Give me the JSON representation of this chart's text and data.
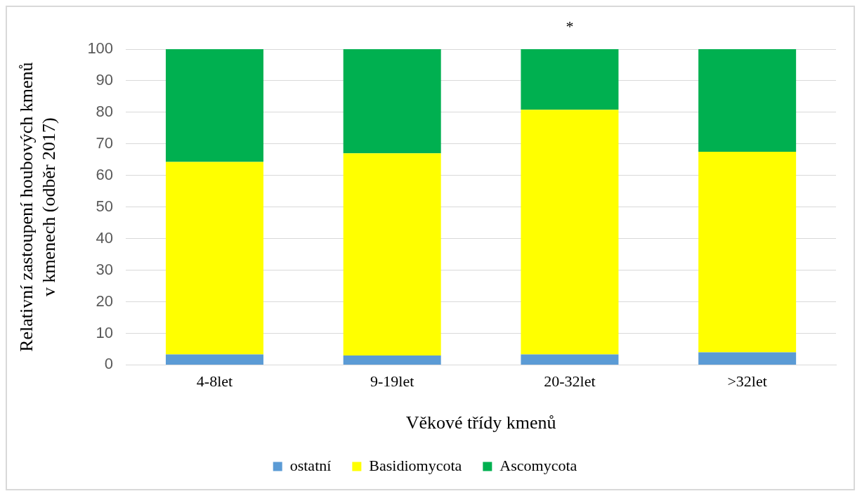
{
  "chart_data": {
    "type": "bar",
    "stacked": true,
    "xlabel": "Věkové třídy kmenů",
    "ylabel": "Relativní zastoupení houbových kmenů\nv kmenech (odběr 2017)",
    "categories": [
      "4-8let",
      "9-19let",
      "20-32let",
      ">32let"
    ],
    "series": [
      {
        "name": "ostatní",
        "color": "#5b9bd5",
        "values": [
          3.3,
          3,
          3.3,
          4
        ]
      },
      {
        "name": "Basidiomycota",
        "color": "#ffff00",
        "values": [
          61,
          64,
          77.5,
          63.5
        ]
      },
      {
        "name": "Ascomycota",
        "color": "#00b050",
        "values": [
          35.7,
          33,
          19.2,
          32.5
        ]
      }
    ],
    "ylim": [
      0,
      100
    ],
    "yticks": [
      0,
      10,
      20,
      30,
      40,
      50,
      60,
      70,
      80,
      90,
      100
    ],
    "grid": "y",
    "legend": "bottom",
    "annotations": [
      {
        "text": "*",
        "x": "20-32let",
        "y": 100
      }
    ]
  }
}
